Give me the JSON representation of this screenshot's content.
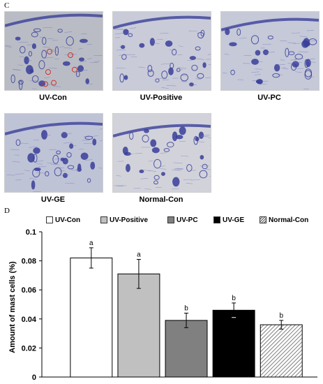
{
  "panels": {
    "c_letter": "C",
    "d_letter": "D",
    "images": [
      {
        "label": "UV-Con",
        "tone": "#b9bcc4"
      },
      {
        "label": "UV-Positive",
        "tone": "#c9cbd8"
      },
      {
        "label": "UV-PC",
        "tone": "#c5c9d8"
      },
      {
        "label": "UV-GE",
        "tone": "#bfc3d6"
      },
      {
        "label": "Normal-Con",
        "tone": "#d2d3da"
      }
    ]
  },
  "chart_data": {
    "type": "bar",
    "categories": [
      "UV-Con",
      "UV-Positive",
      "UV-PC",
      "UV-GE",
      "Normal-Con"
    ],
    "values": [
      0.082,
      0.071,
      0.039,
      0.046,
      0.036
    ],
    "errors": [
      0.007,
      0.01,
      0.005,
      0.005,
      0.003
    ],
    "significance": [
      "a",
      "a",
      "b",
      "b",
      "b"
    ],
    "fills": [
      "#ffffff",
      "#c0c0c0",
      "#808080",
      "#000000",
      "hatch"
    ],
    "legend_position": "top",
    "ylabel": "Amount of mast cells (%)",
    "ylim": [
      0,
      0.1
    ],
    "yticks": [
      "0",
      "0.02",
      "0.04",
      "0.06",
      "0.08",
      "0.1"
    ]
  },
  "colors": {
    "stain_dark": "#3a3f9a",
    "stain_mid": "#6f74b8",
    "circle_marker": "#d0302a"
  }
}
